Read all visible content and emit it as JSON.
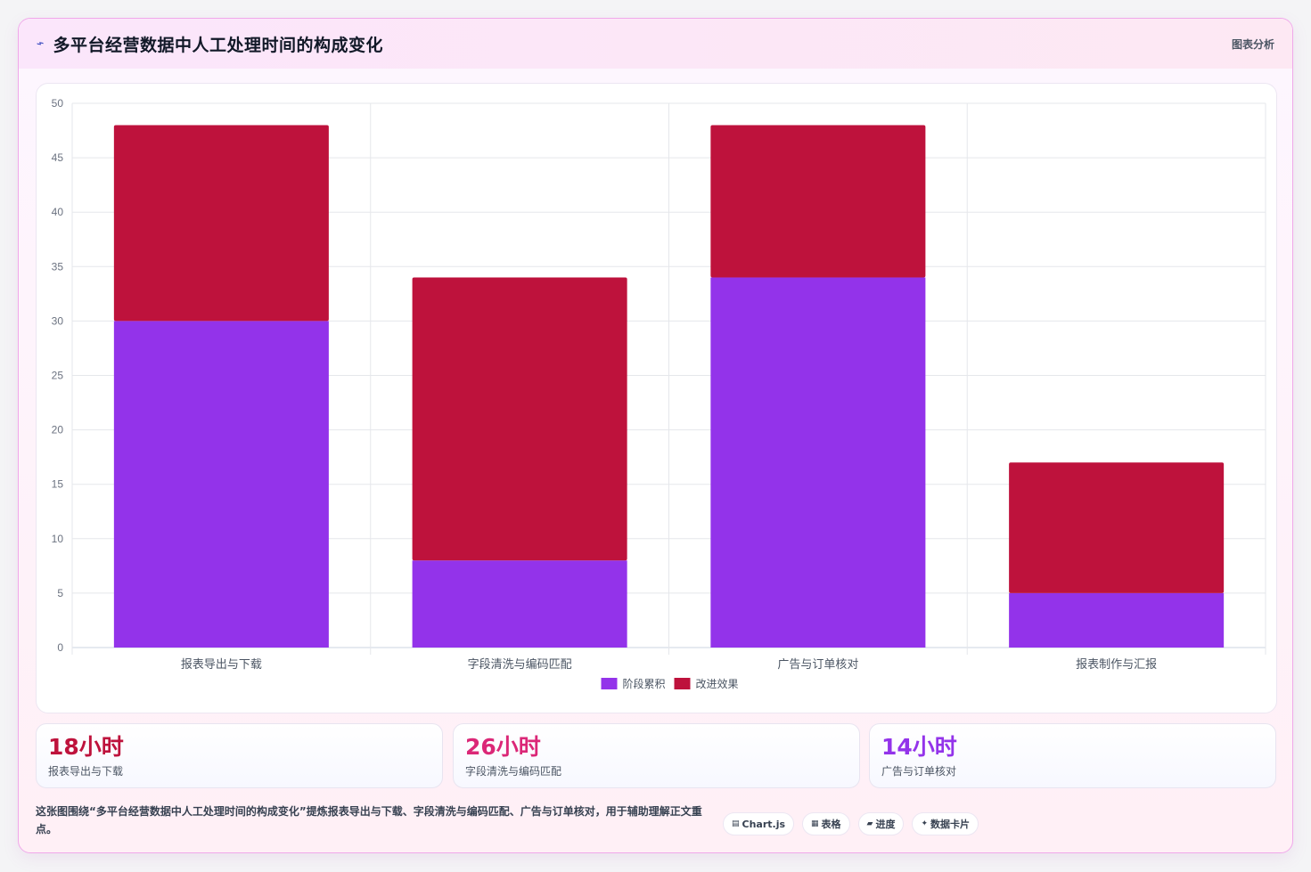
{
  "header": {
    "title": "多平台经营数据中人工处理时间的构成变化",
    "badge": "图表分析"
  },
  "chart_data": {
    "type": "bar",
    "stacked": true,
    "categories": [
      "报表导出与下载",
      "字段清洗与编码匹配",
      "广告与订单核对",
      "报表制作与汇报"
    ],
    "series": [
      {
        "name": "阶段累积",
        "values": [
          30,
          8,
          34,
          5
        ],
        "color": "#9333ea"
      },
      {
        "name": "改进效果",
        "values": [
          18,
          26,
          14,
          12
        ],
        "color": "#be123c"
      }
    ],
    "yticks": [
      "0",
      "5",
      "10",
      "15",
      "20",
      "25",
      "30",
      "35",
      "40",
      "45",
      "50"
    ],
    "ylim": [
      0,
      50
    ],
    "grid": true,
    "legend": "bottom"
  },
  "kpis": [
    {
      "value": "18小时",
      "label": "报表导出与下载",
      "color": "#be123c"
    },
    {
      "value": "26小时",
      "label": "字段清洗与编码匹配",
      "color": "#db2777"
    },
    {
      "value": "14小时",
      "label": "广告与订单核对",
      "color": "#9333ea"
    }
  ],
  "footer": {
    "text": "这张图围绕“多平台经营数据中人工处理时间的构成变化”提炼报表导出与下载、字段清洗与编码匹配、广告与订单核对，用于辅助理解正文重点。",
    "chips": [
      {
        "icon": "▤",
        "label": "Chart.js"
      },
      {
        "icon": "▦",
        "label": "表格"
      },
      {
        "icon": "▰",
        "label": "进度"
      },
      {
        "icon": "✦",
        "label": "数据卡片"
      }
    ]
  }
}
